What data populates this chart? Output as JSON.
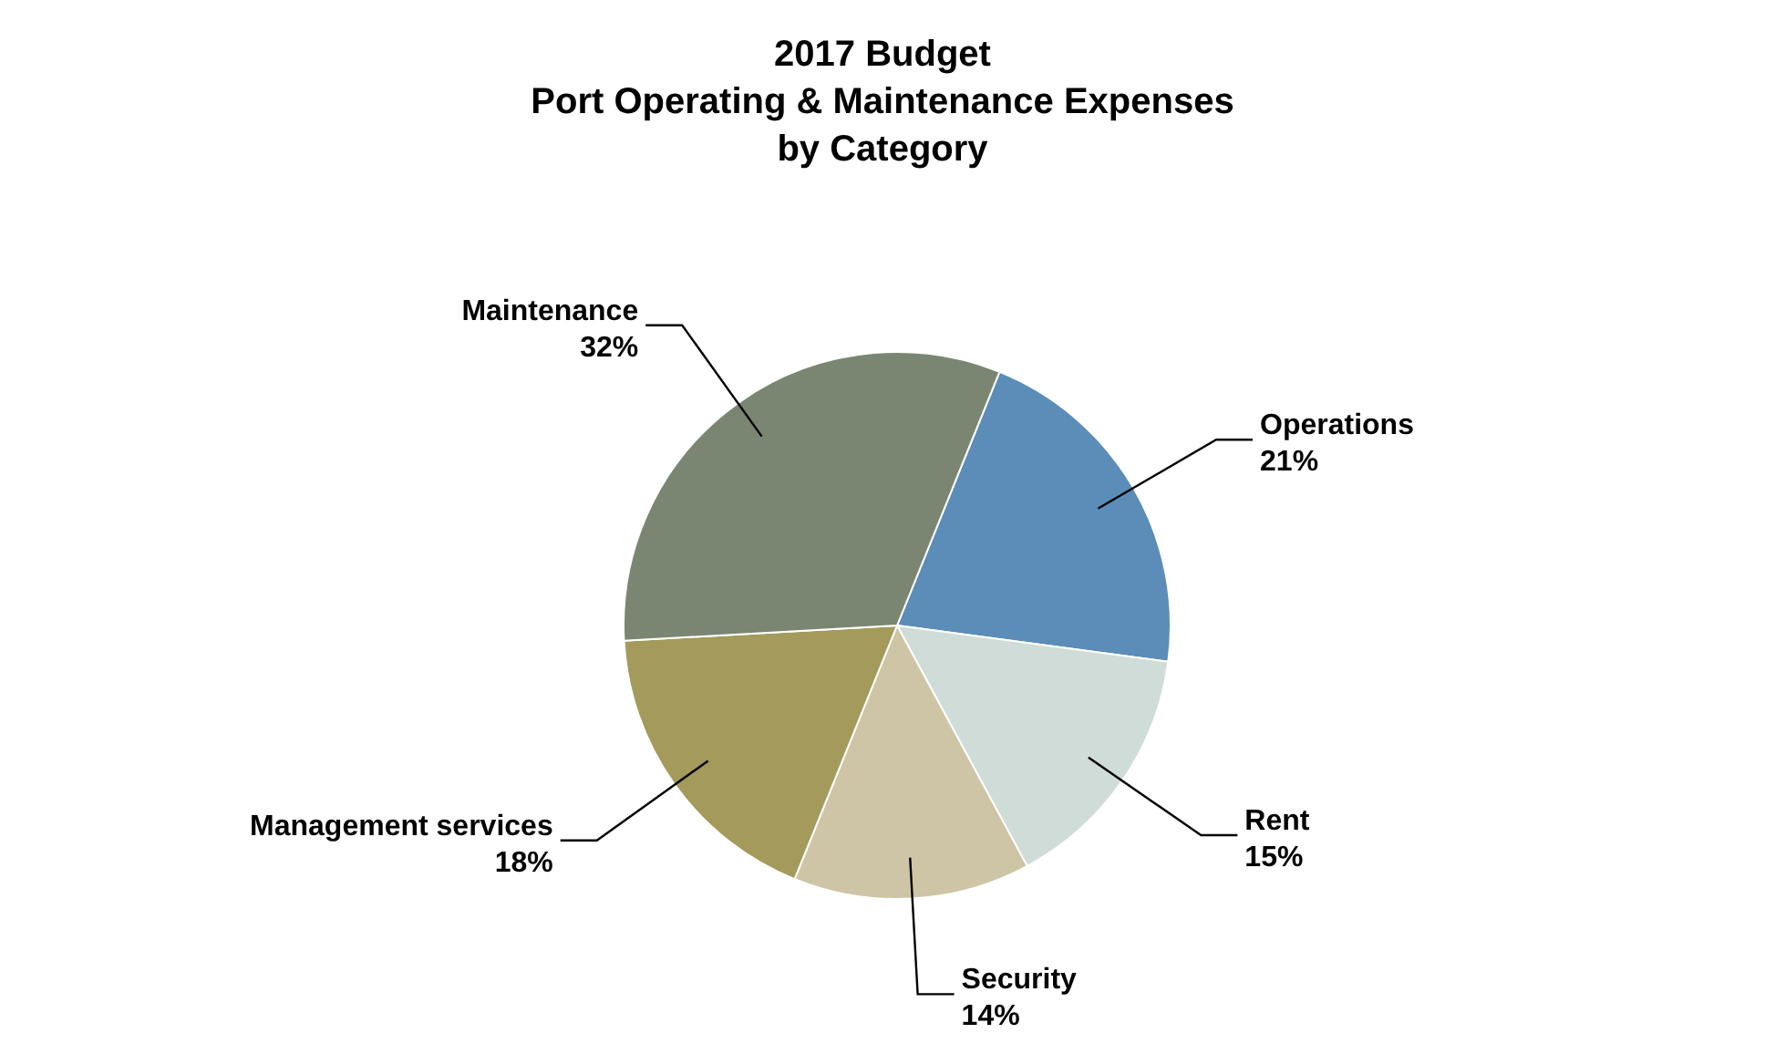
{
  "chart_data": {
    "type": "pie",
    "title": "2017 Budget\nPort Operating & Maintenance Expenses\nby Category",
    "categories": [
      "Operations",
      "Rent",
      "Security",
      "Management services",
      "Maintenance"
    ],
    "values": [
      21,
      15,
      14,
      18,
      32
    ],
    "value_labels": [
      "21%",
      "15%",
      "14%",
      "18%",
      "32%"
    ],
    "colors": [
      "#5b8db8",
      "#d0dcd8",
      "#cdc5a5",
      "#a39a5c",
      "#7b8672"
    ],
    "legend": false
  }
}
